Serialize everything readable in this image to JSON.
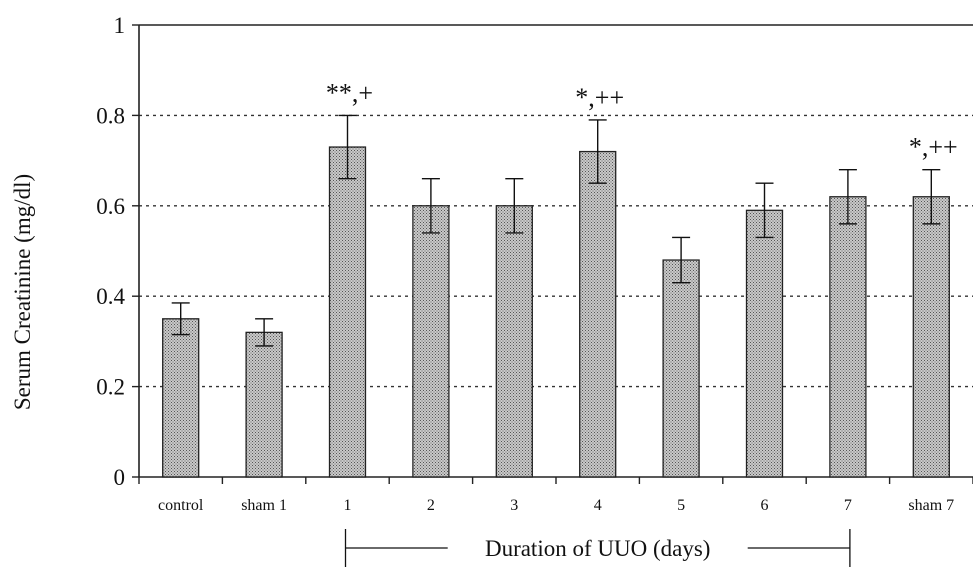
{
  "chart_data": {
    "type": "bar",
    "title": "",
    "xlabel": "Duration of UUO (days)",
    "ylabel": "Serum Creatinine (mg/dl)",
    "ylim": [
      0,
      1
    ],
    "yticks": [
      "0",
      "0.2",
      "0.4",
      "0.6",
      "0.8",
      "1"
    ],
    "grid": "horizontal dotted lines at 0.2, 0.4, 0.6, 0.8",
    "categories": [
      "control",
      "sham 1",
      "1",
      "2",
      "3",
      "4",
      "5",
      "6",
      "7",
      "sham 7"
    ],
    "values": [
      0.35,
      0.32,
      0.73,
      0.6,
      0.6,
      0.72,
      0.48,
      0.59,
      0.62,
      0.62
    ],
    "errors": [
      0.035,
      0.03,
      0.07,
      0.06,
      0.06,
      0.07,
      0.05,
      0.06,
      0.06,
      0.06
    ],
    "annotations": [
      {
        "category": "1",
        "text": "**,+"
      },
      {
        "category": "4",
        "text": "*,++"
      },
      {
        "category": "sham 7",
        "text": "*,++"
      }
    ],
    "duration_bracket": {
      "from": "1",
      "to": "7"
    },
    "colors": {
      "bar_fill": "#b8b8b8",
      "bar_stroke": "#222222",
      "grid": "#333333"
    }
  }
}
